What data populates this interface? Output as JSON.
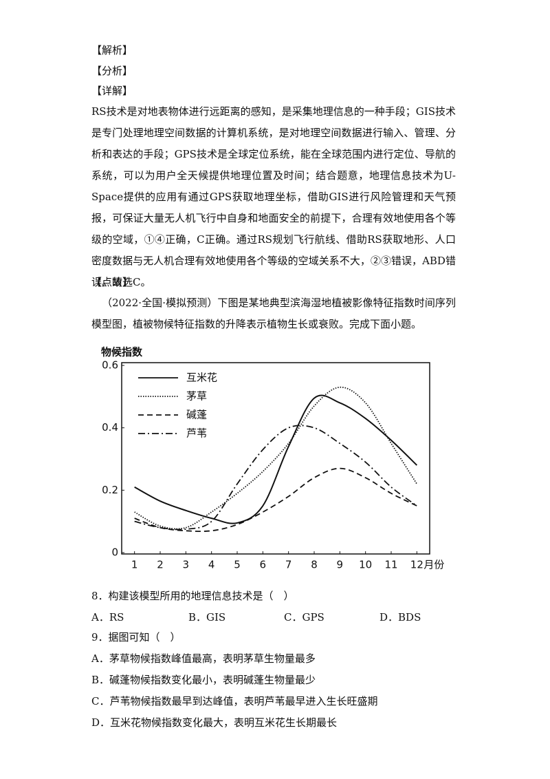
{
  "labels": {
    "analysis": "【解析】",
    "brief": "【分析】",
    "detail": "【详解】",
    "tip": "【点睛】"
  },
  "explanation": "RS技术是对地表物体进行远距离的感知，是采集地理信息的一种手段；GIS技术是专门处理地理空间数据的计算机系统，是对地理空间数据进行输入、管理、分析和表达的手段；GPS技术是全球定位系统，能在全球范围内进行定位、导航的系统，可以为用户全天候提供地理位置及时间；结合题意，地理信息技术为U-Space提供的应用有通过GPS获取地理坐标，借助GIS进行风险管理和天气预报，可保证大量无人机飞行中自身和地面安全的前提下，合理有效地使用各个等级的空域，①④正确，C正确。通过RS规划飞行航线、借助RS获取地形、人口密度数据与无人机合理有效地使用各个等级的空域关系不大，②③错误，ABD错误。故选C。",
  "intro": "（2022·全国·模拟预测）下图是某地典型滨海湿地植被影像特征指数时间序列模型图，植被物候特征指数的升降表示植物生长或衰败。完成下面小题。",
  "chart_data": {
    "type": "line",
    "y_label": "物候指数",
    "x_label": "月份",
    "x": [
      1,
      2,
      3,
      4,
      5,
      6,
      7,
      8,
      9,
      10,
      11,
      12
    ],
    "xlim": [
      0.5,
      12.5
    ],
    "ylim": [
      0,
      0.6
    ],
    "yticks": [
      0,
      0.2,
      0.4,
      0.6
    ],
    "legend": "upper left",
    "series": [
      {
        "name": "互米花",
        "color": "#111111",
        "line_style": "solid",
        "values": [
          0.21,
          0.165,
          0.135,
          0.11,
          0.095,
          0.15,
          0.34,
          0.495,
          0.48,
          0.43,
          0.36,
          0.28
        ]
      },
      {
        "name": "茅草",
        "color": "#111111",
        "line_style": "dotted",
        "values": [
          0.13,
          0.085,
          0.08,
          0.13,
          0.19,
          0.26,
          0.35,
          0.47,
          0.53,
          0.48,
          0.35,
          0.22
        ]
      },
      {
        "name": "碱蓬",
        "color": "#111111",
        "line_style": "dashed",
        "values": [
          0.11,
          0.08,
          0.07,
          0.07,
          0.09,
          0.13,
          0.18,
          0.24,
          0.27,
          0.24,
          0.19,
          0.15
        ]
      },
      {
        "name": "芦苇",
        "color": "#111111",
        "line_style": "dashdot",
        "values": [
          0.1,
          0.08,
          0.075,
          0.1,
          0.22,
          0.33,
          0.4,
          0.4,
          0.35,
          0.29,
          0.21,
          0.15
        ]
      }
    ]
  },
  "questions": [
    {
      "stem": "8．构建该模型所用的地理信息技术是（　）",
      "options": [
        "A．RS",
        "B．GIS",
        "C．GPS",
        "D．BDS"
      ]
    },
    {
      "stem": "9．据图可知（　）",
      "options": [
        "A．茅草物候指数峰值最高，表明茅草生物量最多",
        "B．碱蓬物候指数变化最小，表明碱蓬生物量最少",
        "C．芦苇物候指数最早到达峰值，表明芦苇最早进入生长旺盛期",
        "D．互米花物候指数变化最大，表明互米花生长期最长"
      ]
    }
  ]
}
